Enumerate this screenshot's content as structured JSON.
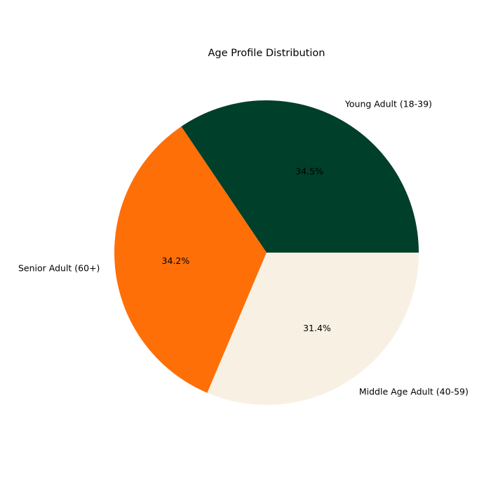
{
  "chart_data": {
    "type": "pie",
    "title": "Age Profile Distribution",
    "slices": [
      {
        "label": "Young Adult (18-39)",
        "value": 34.5,
        "pct_label": "34.5%",
        "color": "#003f2a"
      },
      {
        "label": "Senior Adult (60+)",
        "value": 34.2,
        "pct_label": "34.2%",
        "color": "#ff6f08"
      },
      {
        "label": "Middle Age Adult (40-59)",
        "value": 31.4,
        "pct_label": "31.4%",
        "color": "#f8f0e3"
      }
    ],
    "start_angle_deg": 0,
    "direction": "counterclockwise",
    "legend": "none"
  }
}
